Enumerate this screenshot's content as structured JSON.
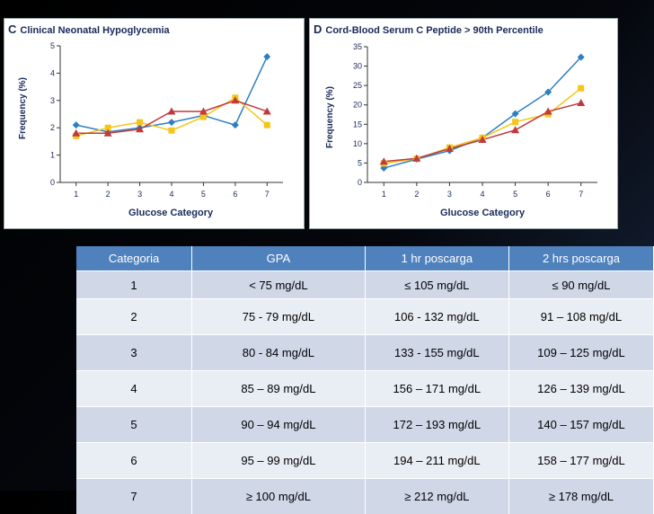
{
  "chart_data": [
    {
      "type": "line",
      "label": "C",
      "title": "Clinical Neonatal Hypoglycemia",
      "xlabel": "Glucose Category",
      "ylabel": "Frequency (%)",
      "x": [
        1,
        2,
        3,
        4,
        5,
        6,
        7
      ],
      "ylim": [
        0,
        5
      ],
      "yticks": [
        0,
        1,
        2,
        3,
        4,
        5
      ],
      "series": [
        {
          "name": "diamond",
          "marker": "diamond",
          "color": "#2e7fc2",
          "values": [
            2.1,
            1.85,
            2.0,
            2.2,
            2.45,
            2.1,
            4.6
          ]
        },
        {
          "name": "square",
          "marker": "square",
          "color": "#f5c518",
          "values": [
            1.7,
            2.0,
            2.2,
            1.9,
            2.4,
            3.1,
            2.1
          ]
        },
        {
          "name": "triangle",
          "marker": "triangle",
          "color": "#c03a3a",
          "values": [
            1.8,
            1.8,
            1.95,
            2.6,
            2.6,
            3.0,
            2.6
          ]
        }
      ]
    },
    {
      "type": "line",
      "label": "D",
      "title": "Cord-Blood Serum C Peptide > 90th Percentile",
      "xlabel": "Glucose Category",
      "ylabel": "Frequency (%)",
      "x": [
        1,
        2,
        3,
        4,
        5,
        6,
        7
      ],
      "ylim": [
        0,
        35
      ],
      "yticks": [
        0,
        5,
        10,
        15,
        20,
        25,
        30,
        35
      ],
      "series": [
        {
          "name": "diamond",
          "marker": "diamond",
          "color": "#2e7fc2",
          "values": [
            3.7,
            6.0,
            8.2,
            11.5,
            17.7,
            23.3,
            32.3
          ]
        },
        {
          "name": "square",
          "marker": "square",
          "color": "#f5c518",
          "values": [
            4.9,
            6.1,
            9.0,
            11.5,
            15.6,
            17.6,
            24.3
          ]
        },
        {
          "name": "triangle",
          "marker": "triangle",
          "color": "#c03a3a",
          "values": [
            5.4,
            6.2,
            8.7,
            11.0,
            13.5,
            18.3,
            20.5
          ]
        }
      ]
    }
  ],
  "table": {
    "headers": [
      "Categoria",
      "GPA",
      "1 hr poscarga",
      "2 hrs poscarga"
    ],
    "rows": [
      [
        "1",
        "< 75 mg/dL",
        "≤ 105 mg/dL",
        "≤ 90 mg/dL"
      ],
      [
        "2",
        "75 - 79 mg/dL",
        "106 - 132 mg/dL",
        "91 – 108 mg/dL"
      ],
      [
        "3",
        "80 - 84 mg/dL",
        "133 - 155 mg/dL",
        "109 – 125 mg/dL"
      ],
      [
        "4",
        "85 – 89 mg/dL",
        "156 – 171 mg/dL",
        "126 – 139 mg/dL"
      ],
      [
        "5",
        "90 – 94 mg/dL",
        "172 – 193 mg/dL",
        "140 – 157 mg/dL"
      ],
      [
        "6",
        "95 – 99 mg/dL",
        "194 – 211 mg/dL",
        "158 – 177 mg/dL"
      ],
      [
        "7",
        "≥ 100 mg/dL",
        "≥ 212 mg/dL",
        "≥ 178 mg/dL"
      ]
    ]
  }
}
